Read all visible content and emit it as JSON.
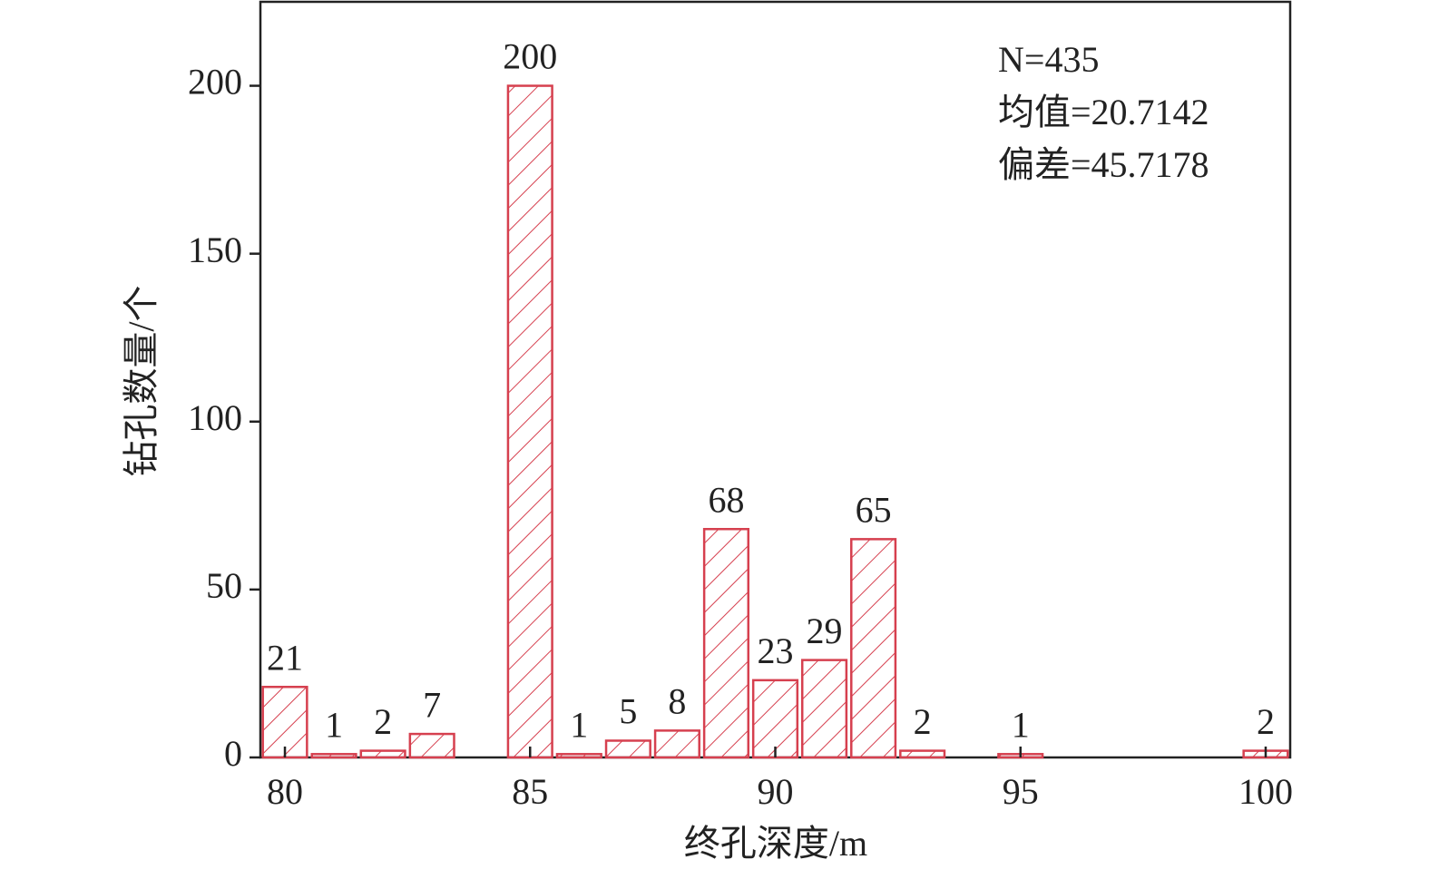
{
  "chart_data": {
    "type": "bar",
    "x": [
      80,
      81,
      82,
      83,
      85,
      86,
      87,
      88,
      89,
      90,
      91,
      92,
      93,
      95,
      100
    ],
    "values": [
      21,
      1,
      2,
      7,
      200,
      1,
      5,
      8,
      68,
      23,
      29,
      65,
      2,
      1,
      2
    ],
    "color": "#d6404f",
    "xlabel": "终孔深度/m",
    "ylabel": "钻孔数量/个",
    "xlim": [
      79.5,
      100.5
    ],
    "xticks": [
      80,
      85,
      90,
      95,
      100
    ],
    "ylim": [
      0,
      225
    ],
    "yticks": [
      0,
      50,
      100,
      150,
      200
    ],
    "annotations": [
      "N=435",
      "均值=20.7142",
      "偏差=45.7178"
    ],
    "grid": false
  }
}
